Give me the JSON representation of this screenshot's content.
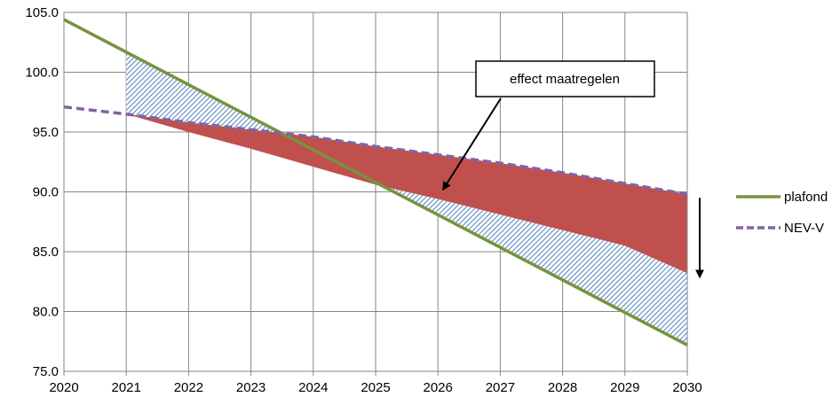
{
  "chart_data": {
    "type": "line",
    "title": "",
    "xlabel": "",
    "ylabel": "",
    "x": [
      2020,
      2021,
      2022,
      2023,
      2024,
      2025,
      2026,
      2027,
      2028,
      2029,
      2030
    ],
    "x_tick_labels": [
      "2020",
      "2021",
      "2022",
      "2023",
      "2024",
      "2025",
      "2026",
      "2027",
      "2028",
      "2029",
      "2030"
    ],
    "ylim": [
      75.0,
      105.0
    ],
    "y_ticks": [
      75.0,
      80.0,
      85.0,
      90.0,
      95.0,
      100.0,
      105.0
    ],
    "y_tick_labels": [
      "75.0",
      "80.0",
      "85.0",
      "90.0",
      "95.0",
      "100.0",
      "105.0"
    ],
    "grid": true,
    "legend_position": "right",
    "series": [
      {
        "name": "plafond",
        "style": "solid",
        "color": "#77933c",
        "x": [
          2020,
          2030
        ],
        "values": [
          104.4,
          77.2
        ]
      },
      {
        "name": "NEV-V",
        "style": "dashed",
        "color": "#8064a2",
        "x": [
          2020,
          2021,
          2022,
          2023,
          2024,
          2025,
          2026,
          2027,
          2028,
          2029,
          2030
        ],
        "values": [
          97.1,
          96.5,
          95.8,
          95.2,
          94.6,
          93.8,
          93.1,
          92.4,
          91.6,
          90.7,
          89.8
        ]
      }
    ],
    "areas": [
      {
        "role": "hatched",
        "fill": "#4f81bd",
        "pattern": "diagonal-hatch",
        "x": [
          2021,
          2022,
          2023,
          2023.65
        ],
        "upper": [
          101.7,
          99.0,
          96.3,
          94.55
        ],
        "lower": [
          96.5,
          95.8,
          95.2,
          94.55
        ]
      },
      {
        "role": "hatched",
        "fill": "#4f81bd",
        "pattern": "diagonal-hatch",
        "x": [
          2025,
          2026,
          2027,
          2028,
          2029,
          2030
        ],
        "upper": [
          90.6,
          89.4,
          88.1,
          86.8,
          85.5,
          83.2
        ],
        "lower": [
          90.6,
          88.0,
          85.3,
          82.6,
          79.9,
          77.2
        ]
      },
      {
        "role": "solid",
        "fill": "#c0504d",
        "x": [
          2021,
          2022,
          2023,
          2024,
          2025,
          2026,
          2027,
          2028,
          2029,
          2030
        ],
        "upper": [
          96.5,
          95.8,
          95.2,
          94.6,
          93.8,
          93.1,
          92.4,
          91.6,
          90.7,
          89.8
        ],
        "lower": [
          96.5,
          95.0,
          93.6,
          92.1,
          90.6,
          89.4,
          88.1,
          86.8,
          85.5,
          83.2
        ]
      }
    ],
    "annotations": [
      {
        "text": "effect maatregelen",
        "anchor_x": 2026.0,
        "anchor_y": 90.0
      },
      {
        "text": "",
        "type": "downward-arrow",
        "x": 2030.2,
        "from_y": 89.5,
        "to_y": 82.9
      }
    ]
  }
}
